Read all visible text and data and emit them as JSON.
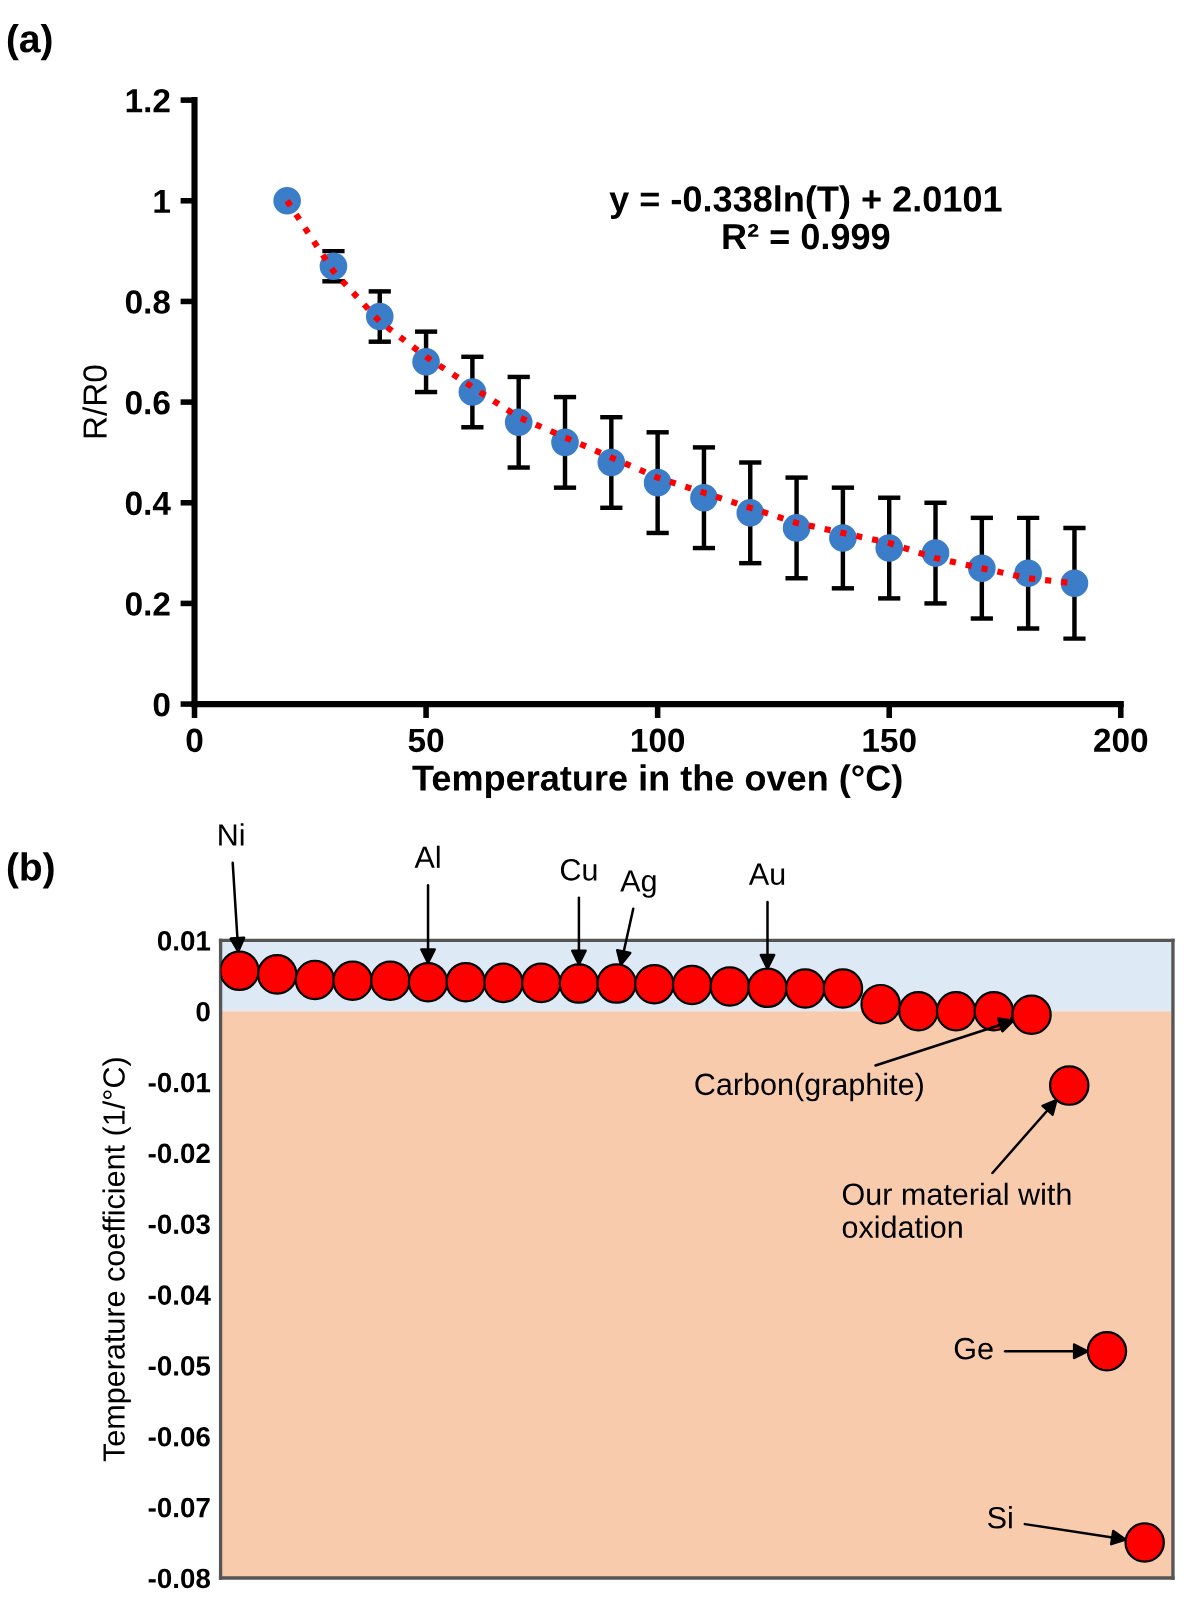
{
  "chart_data": [
    {
      "type": "scatter",
      "title": "(a)",
      "xlabel": "Temperature in the oven (°C)",
      "ylabel": "R/R0",
      "x": [
        20,
        30,
        40,
        50,
        60,
        70,
        80,
        90,
        100,
        110,
        120,
        130,
        140,
        150,
        160,
        170,
        180,
        190
      ],
      "series": [
        {
          "type": "scatter",
          "color": "#3b7dc8",
          "marker": "circle",
          "values": [
            1.0,
            0.87,
            0.77,
            0.68,
            0.62,
            0.56,
            0.52,
            0.48,
            0.44,
            0.41,
            0.38,
            0.35,
            0.33,
            0.31,
            0.3,
            0.27,
            0.26,
            0.24
          ],
          "errors": [
            null,
            0.03,
            0.05,
            0.06,
            0.07,
            0.09,
            0.09,
            0.09,
            0.1,
            0.1,
            0.1,
            0.1,
            0.1,
            0.1,
            0.1,
            0.1,
            0.11,
            0.11
          ]
        },
        {
          "type": "line",
          "color": "#ff0000",
          "line_style": "dotted",
          "marker": "none",
          "x": [
            20,
            30,
            40,
            50,
            60,
            70,
            80,
            90,
            100,
            110,
            120,
            130,
            140,
            150,
            160,
            170,
            180,
            190
          ],
          "values": [
            1.0,
            0.86,
            0.76,
            0.69,
            0.63,
            0.57,
            0.53,
            0.49,
            0.45,
            0.42,
            0.39,
            0.36,
            0.34,
            0.32,
            0.29,
            0.27,
            0.25,
            0.24
          ]
        }
      ],
      "xlim": [
        0,
        200
      ],
      "xticks": [
        0,
        50,
        100,
        150,
        200
      ],
      "ylim": [
        0,
        1.2
      ],
      "yticks": [
        0,
        0.2,
        0.4,
        0.6,
        0.8,
        1,
        1.2
      ],
      "grid": false,
      "annotations": [
        "y = -0.338ln(T) + 2.0101",
        "R² = 0.999"
      ]
    },
    {
      "type": "scatter",
      "title": "(b)",
      "ylabel": "Temperature coefficient (1/°C)",
      "categories": [
        null,
        null,
        null,
        null,
        null,
        null,
        null,
        null,
        null,
        null,
        null,
        null,
        null,
        null,
        null,
        null,
        null,
        null,
        null,
        null,
        null,
        null,
        null,
        null,
        null
      ],
      "series": [
        {
          "color": "#ff0000",
          "marker": "circle",
          "values": [
            0.0057,
            0.0052,
            0.0044,
            0.0043,
            0.0043,
            0.0041,
            0.0041,
            0.004,
            0.004,
            0.0039,
            0.0039,
            0.0038,
            0.0037,
            0.0035,
            0.0033,
            0.0032,
            0.0032,
            0.001,
            0,
            0,
            0,
            -0.0005,
            -0.0105,
            -0.048,
            -0.075
          ]
        }
      ],
      "ylim": [
        -0.08,
        0.01
      ],
      "yticks": [
        -0.08,
        -0.07,
        -0.06,
        -0.05,
        -0.04,
        -0.03,
        -0.02,
        -0.01,
        0,
        0.01
      ],
      "tick_labels": "y",
      "grid": false,
      "bands": [
        {
          "axis": "y",
          "from": 0,
          "to": 0.01,
          "color": "#dde9f5"
        },
        {
          "axis": "y",
          "from": -0.08,
          "to": 0,
          "color": "#f8cbad"
        }
      ],
      "annotations": [
        "Ni",
        "Al",
        "Cu",
        "Ag",
        "Au",
        "Carbon(graphite)",
        "Our material with\noxidation",
        "Ge",
        "Si"
      ]
    }
  ]
}
